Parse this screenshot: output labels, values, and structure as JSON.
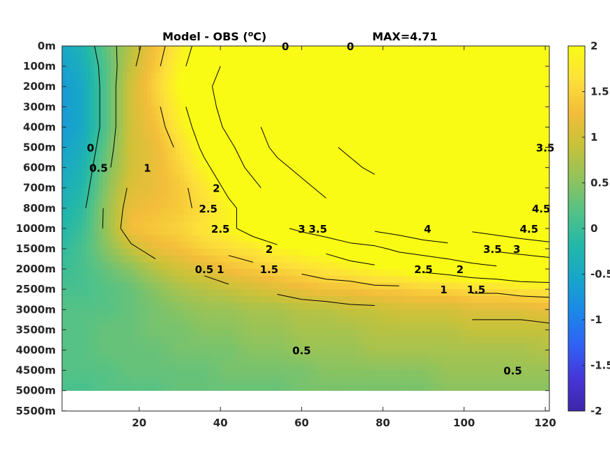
{
  "chart_data": {
    "type": "heatmap",
    "title": "Model - OBS (°C)",
    "title_parts": {
      "prefix": "Model - OBS (",
      "superscript": "o",
      "suffix": "C)"
    },
    "annotation": "MAX=4.71",
    "xlim": [
      1,
      121
    ],
    "x_ticks": [
      20,
      40,
      60,
      80,
      100,
      120
    ],
    "y_tick_labels": [
      "0m",
      "100m",
      "200m",
      "300m",
      "400m",
      "500m",
      "600m",
      "700m",
      "800m",
      "1000m",
      "1500m",
      "2000m",
      "2500m",
      "3000m",
      "3500m",
      "4000m",
      "4500m",
      "5000m",
      "5500m"
    ],
    "y_data_last_label": "5000m",
    "colorbar": {
      "range": [
        -2,
        2
      ],
      "ticks": [
        "2",
        "1.5",
        "1",
        "0.5",
        "0",
        "-0.5",
        "-1",
        "-1.5",
        "-2"
      ],
      "colormap": "parula",
      "stops": [
        "#3e26a8",
        "#4536d8",
        "#2f62f5",
        "#1b88e8",
        "#17a6c9",
        "#23b8a8",
        "#53c287",
        "#91c35c",
        "#c7c23a",
        "#f3bd3a",
        "#fde13a",
        "#f9fb15"
      ]
    },
    "value_grid_note": "depth rows 0m..5000m (18 levels) x columns at x = 1,6,12,18,24,30,36,42,48,54,60,66,72,78,84,90,96,102,108,114,121",
    "x_columns": [
      1,
      6,
      12,
      18,
      24,
      30,
      36,
      42,
      48,
      54,
      60,
      66,
      72,
      78,
      84,
      90,
      96,
      102,
      108,
      114,
      121
    ],
    "values": [
      [
        -0.5,
        -0.3,
        0.3,
        0.8,
        1.3,
        1.8,
        2.2,
        2.5,
        2.8,
        3.0,
        3.2,
        3.3,
        3.5,
        3.6,
        3.8,
        3.9,
        4.0,
        4.2,
        4.4,
        4.5,
        4.7
      ],
      [
        -0.6,
        -0.4,
        0.2,
        0.9,
        1.4,
        1.9,
        2.3,
        2.6,
        2.9,
        3.1,
        3.3,
        3.5,
        3.6,
        3.7,
        3.9,
        4.0,
        4.1,
        4.3,
        4.5,
        4.6,
        4.7
      ],
      [
        -0.7,
        -0.5,
        0.2,
        1.0,
        1.5,
        2.0,
        2.4,
        2.7,
        3.0,
        3.2,
        3.4,
        3.5,
        3.7,
        3.8,
        4.0,
        4.1,
        4.2,
        4.4,
        4.5,
        4.6,
        4.7
      ],
      [
        -0.7,
        -0.5,
        0.2,
        1.0,
        1.4,
        1.9,
        2.3,
        2.7,
        3.0,
        3.2,
        3.4,
        3.5,
        3.7,
        3.8,
        4.0,
        4.1,
        4.2,
        4.3,
        4.5,
        4.6,
        4.7
      ],
      [
        -0.7,
        -0.5,
        0.2,
        1.0,
        1.3,
        1.8,
        2.2,
        2.6,
        2.9,
        3.2,
        3.3,
        3.5,
        3.6,
        3.8,
        3.9,
        4.0,
        4.2,
        4.3,
        4.4,
        4.5,
        4.6
      ],
      [
        -0.6,
        -0.4,
        0.3,
        1.0,
        1.2,
        1.6,
        2.1,
        2.4,
        2.8,
        3.1,
        3.3,
        3.4,
        3.6,
        3.7,
        3.9,
        4.0,
        4.1,
        4.2,
        4.3,
        4.4,
        4.5
      ],
      [
        -0.5,
        -0.3,
        0.4,
        1.0,
        1.2,
        1.5,
        1.9,
        2.3,
        2.6,
        2.9,
        3.1,
        3.3,
        3.4,
        3.6,
        3.7,
        3.8,
        3.9,
        4.0,
        4.1,
        4.2,
        4.3
      ],
      [
        -0.4,
        -0.2,
        0.5,
        1.1,
        1.2,
        1.4,
        1.7,
        2.1,
        2.4,
        2.7,
        2.9,
        3.1,
        3.2,
        3.3,
        3.5,
        3.6,
        3.7,
        3.8,
        3.9,
        4.0,
        4.1
      ],
      [
        -0.3,
        -0.1,
        0.6,
        1.2,
        1.3,
        1.4,
        1.6,
        1.9,
        2.2,
        2.5,
        2.7,
        2.9,
        3.0,
        3.1,
        3.3,
        3.4,
        3.5,
        3.6,
        3.7,
        3.8,
        3.9
      ],
      [
        -0.2,
        0.0,
        0.6,
        1.3,
        1.4,
        1.5,
        1.7,
        1.9,
        2.2,
        2.4,
        2.6,
        2.8,
        3.0,
        3.1,
        3.2,
        3.4,
        3.5,
        3.6,
        3.7,
        3.8,
        3.9
      ],
      [
        -0.1,
        0.1,
        0.5,
        0.9,
        1.2,
        1.3,
        1.5,
        1.6,
        1.7,
        1.9,
        2.0,
        2.1,
        2.3,
        2.4,
        2.6,
        2.7,
        2.8,
        3.0,
        3.1,
        3.2,
        3.3
      ],
      [
        0.0,
        0.1,
        0.3,
        0.5,
        0.8,
        1.0,
        1.1,
        1.3,
        1.4,
        1.5,
        1.6,
        1.7,
        1.8,
        1.9,
        2.0,
        2.1,
        2.2,
        2.3,
        2.4,
        2.5,
        2.6
      ],
      [
        0.1,
        0.1,
        0.2,
        0.3,
        0.5,
        0.7,
        0.8,
        0.9,
        1.0,
        1.1,
        1.2,
        1.3,
        1.3,
        1.4,
        1.4,
        1.5,
        1.5,
        1.6,
        1.6,
        1.7,
        1.7
      ],
      [
        0.2,
        0.2,
        0.2,
        0.3,
        0.4,
        0.5,
        0.6,
        0.6,
        0.7,
        0.7,
        0.8,
        0.8,
        0.9,
        0.9,
        1.0,
        1.0,
        1.0,
        1.1,
        1.1,
        1.1,
        1.2
      ],
      [
        0.2,
        0.2,
        0.3,
        0.3,
        0.4,
        0.4,
        0.5,
        0.5,
        0.6,
        0.6,
        0.7,
        0.7,
        0.7,
        0.8,
        0.8,
        0.8,
        0.8,
        0.9,
        0.9,
        0.9,
        0.9
      ],
      [
        0.2,
        0.2,
        0.3,
        0.3,
        0.3,
        0.4,
        0.4,
        0.4,
        0.5,
        0.5,
        0.6,
        0.6,
        0.6,
        0.7,
        0.7,
        0.7,
        0.7,
        0.7,
        0.7,
        0.7,
        0.8
      ],
      [
        0.2,
        0.2,
        0.2,
        0.3,
        0.3,
        0.3,
        0.3,
        0.4,
        0.4,
        0.4,
        0.4,
        0.5,
        0.5,
        0.5,
        0.5,
        0.5,
        0.6,
        0.6,
        0.6,
        0.6,
        0.6
      ],
      [
        0.1,
        0.1,
        0.2,
        0.2,
        0.2,
        0.3,
        0.3,
        0.3,
        0.3,
        0.3,
        0.4,
        0.4,
        0.4,
        0.4,
        0.4,
        0.4,
        0.5,
        0.5,
        0.5,
        0.5,
        0.5
      ]
    ],
    "contour_labels": [
      {
        "text": "0.5",
        "x": 36,
        "depth": "2000m"
      },
      {
        "text": "1",
        "x": 40,
        "depth": "2000m"
      },
      {
        "text": "1.5",
        "x": 52,
        "depth": "2000m"
      },
      {
        "text": "2",
        "x": 52,
        "depth": "1500m"
      },
      {
        "text": "2.5",
        "x": 40,
        "depth": "1000m"
      },
      {
        "text": "3",
        "x": 60,
        "depth": "1000m"
      },
      {
        "text": "3.5",
        "x": 64,
        "depth": "1000m"
      },
      {
        "text": "4",
        "x": 91,
        "depth": "1000m"
      },
      {
        "text": "3.5",
        "x": 107,
        "depth": "1500m"
      },
      {
        "text": "3",
        "x": 113,
        "depth": "1500m"
      },
      {
        "text": "2.5",
        "x": 90,
        "depth": "2000m"
      },
      {
        "text": "2",
        "x": 99,
        "depth": "2000m"
      },
      {
        "text": "1.5",
        "x": 103,
        "depth": "2500m"
      },
      {
        "text": "1",
        "x": 95,
        "depth": "2500m"
      },
      {
        "text": "0.5",
        "x": 60,
        "depth": "4000m"
      },
      {
        "text": "0.5",
        "x": 112,
        "depth": "4500m"
      },
      {
        "text": "4.5",
        "x": 116,
        "depth": "1000m"
      },
      {
        "text": "4.5",
        "x": 119,
        "depth": "800m"
      },
      {
        "text": "1",
        "x": 22,
        "depth": "600m"
      },
      {
        "text": "2",
        "x": 39,
        "depth": "700m"
      },
      {
        "text": "2.5",
        "x": 37,
        "depth": "800m"
      },
      {
        "text": "0.5",
        "x": 10,
        "depth": "600m"
      },
      {
        "text": "0",
        "x": 8,
        "depth": "500m"
      },
      {
        "text": "0",
        "x": 56,
        "depth": "0m"
      },
      {
        "text": "0",
        "x": 72,
        "depth": "0m"
      },
      {
        "text": "3.5",
        "x": 120,
        "depth": "500m"
      }
    ]
  }
}
